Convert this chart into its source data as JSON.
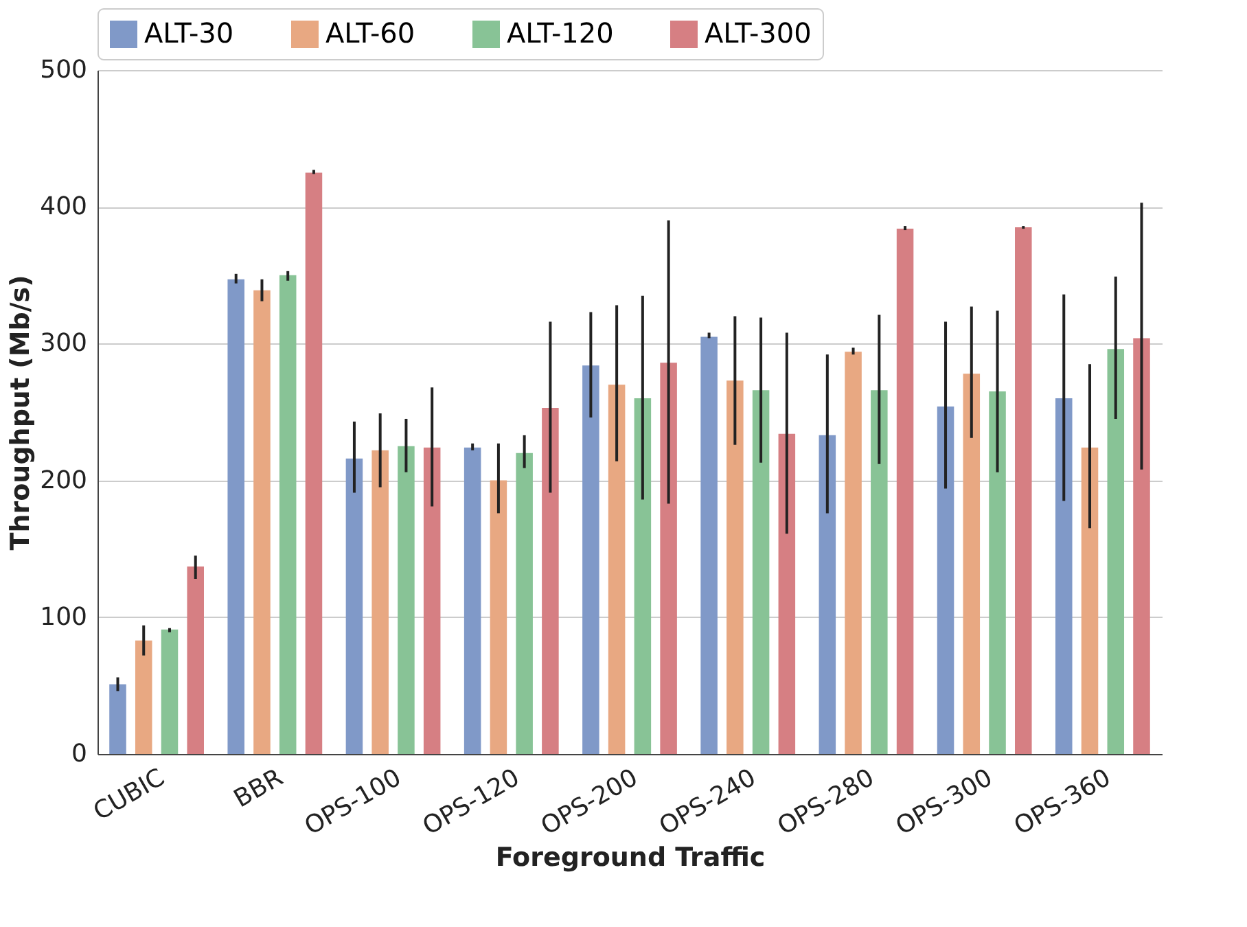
{
  "chart_data": {
    "type": "bar",
    "xlabel": "Foreground Traffic",
    "ylabel": "Throughput (Mb/s)",
    "categories": [
      "CUBIC",
      "BBR",
      "OPS-100",
      "OPS-120",
      "OPS-200",
      "OPS-240",
      "OPS-280",
      "OPS-300",
      "OPS-360"
    ],
    "series": [
      {
        "name": "ALT-30",
        "color": "#8099c8",
        "values": [
          51,
          347,
          216,
          224,
          284,
          305,
          233,
          254,
          260
        ],
        "errors": [
          [
            46,
            56
          ],
          [
            344,
            351
          ],
          [
            191,
            243
          ],
          [
            222,
            227
          ],
          [
            246,
            323
          ],
          [
            304,
            308
          ],
          [
            176,
            292
          ],
          [
            194,
            316
          ],
          [
            185,
            336
          ]
        ]
      },
      {
        "name": "ALT-60",
        "color": "#e8a882",
        "values": [
          83,
          339,
          222,
          200,
          270,
          273,
          294,
          278,
          224
        ],
        "errors": [
          [
            72,
            94
          ],
          [
            331,
            347
          ],
          [
            195,
            249
          ],
          [
            176,
            227
          ],
          [
            214,
            328
          ],
          [
            226,
            320
          ],
          [
            292,
            297
          ],
          [
            231,
            327
          ],
          [
            165,
            285
          ]
        ]
      },
      {
        "name": "ALT-120",
        "color": "#88c396",
        "values": [
          91,
          350,
          225,
          220,
          260,
          266,
          266,
          265,
          296
        ],
        "errors": [
          [
            89,
            92
          ],
          [
            346,
            353
          ],
          [
            206,
            245
          ],
          [
            209,
            233
          ],
          [
            186,
            335
          ],
          [
            213,
            319
          ],
          [
            212,
            321
          ],
          [
            206,
            324
          ],
          [
            245,
            349
          ]
        ]
      },
      {
        "name": "ALT-300",
        "color": "#d67f83",
        "values": [
          137,
          425,
          224,
          253,
          286,
          234,
          384,
          385,
          304
        ],
        "errors": [
          [
            128,
            145
          ],
          [
            424,
            427
          ],
          [
            181,
            268
          ],
          [
            191,
            316
          ],
          [
            183,
            390
          ],
          [
            161,
            308
          ],
          [
            383,
            386
          ],
          [
            384,
            386
          ],
          [
            208,
            403
          ]
        ]
      }
    ],
    "ylim": [
      0,
      500
    ],
    "yticks": [
      0,
      100,
      200,
      300,
      400,
      500
    ],
    "grid": "y",
    "legend": "top"
  }
}
